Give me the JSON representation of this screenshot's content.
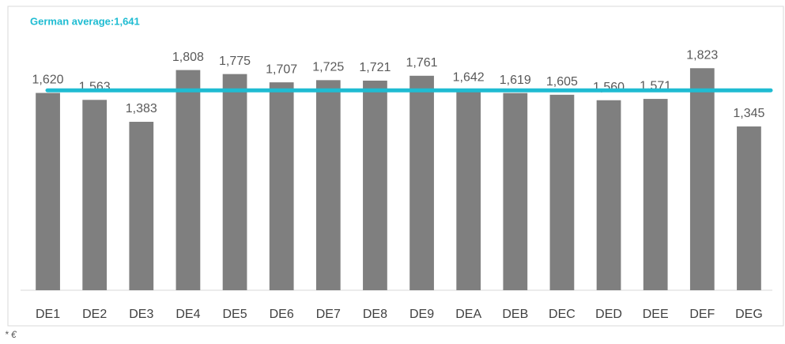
{
  "chart_data": {
    "type": "bar",
    "annotation": "German average:1,641",
    "average": 1641,
    "average_color": "#1fbcd2",
    "categories": [
      "DE1",
      "DE2",
      "DE3",
      "DE4",
      "DE5",
      "DE6",
      "DE7",
      "DE8",
      "DE9",
      "DEA",
      "DEB",
      "DEC",
      "DED",
      "DEE",
      "DEF",
      "DEG"
    ],
    "values": [
      1620,
      1563,
      1383,
      1808,
      1775,
      1707,
      1725,
      1721,
      1761,
      1642,
      1619,
      1605,
      1560,
      1571,
      1823,
      1345
    ],
    "value_labels": [
      "1,620",
      "1,563",
      "1,383",
      "1,808",
      "1,775",
      "1,707",
      "1,725",
      "1,721",
      "1,761",
      "1,642",
      "1,619",
      "1,605",
      "1,560",
      "1,571",
      "1,823",
      "1,345"
    ],
    "color": "#7f7f7f",
    "ylim": [
      0,
      2000
    ],
    "footnote": "* €"
  }
}
